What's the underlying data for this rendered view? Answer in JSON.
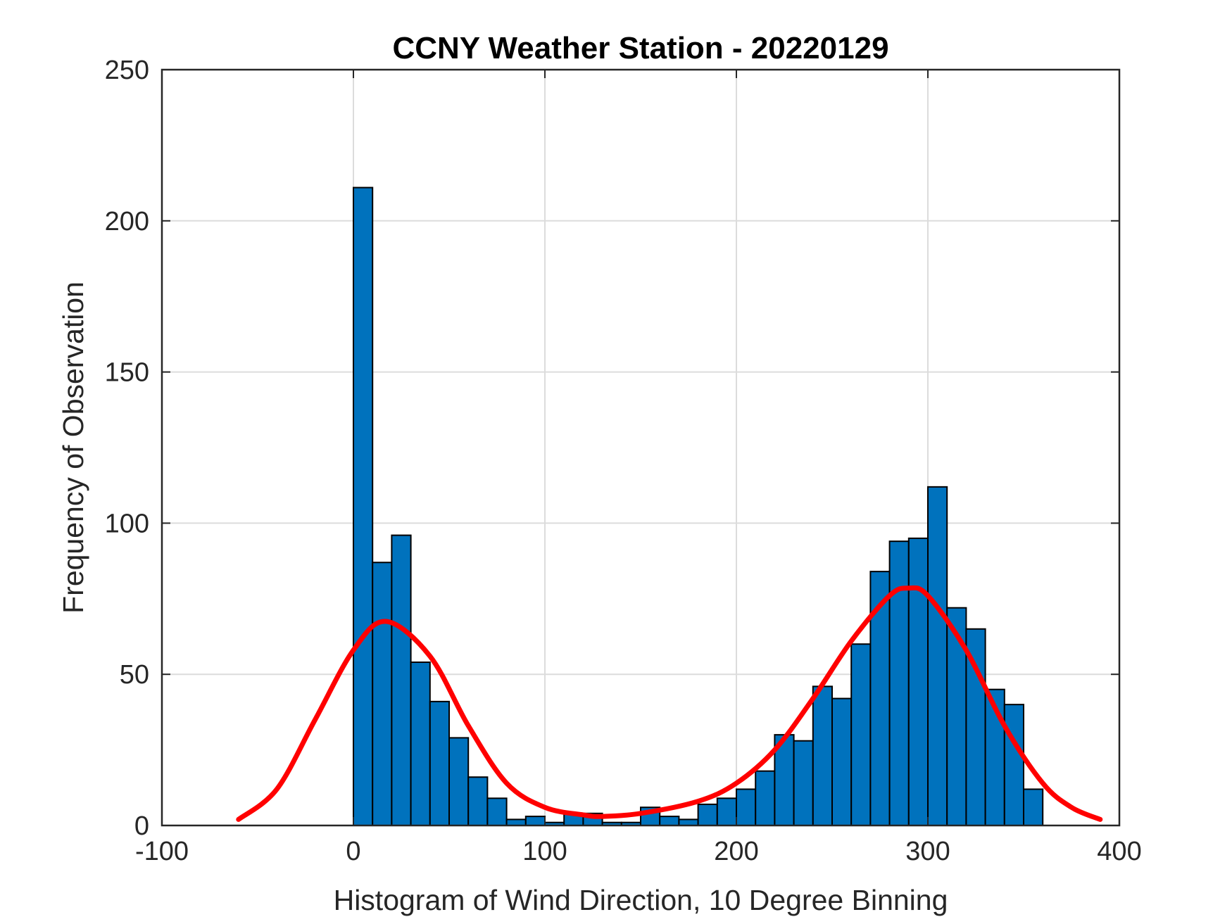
{
  "chart_data": {
    "type": "bar",
    "title": "CCNY Weather Station - 20220129",
    "xlabel": "Histogram of Wind Direction, 10 Degree Binning",
    "ylabel": "Frequency of Observation",
    "xlim": [
      -100,
      400
    ],
    "ylim": [
      0,
      250
    ],
    "xticks": [
      "-100",
      "0",
      "100",
      "200",
      "300",
      "400"
    ],
    "yticks": [
      "0",
      "50",
      "100",
      "150",
      "200",
      "250"
    ],
    "grid": true,
    "bin_width": 10,
    "bins": [
      {
        "start": 0,
        "count": 211
      },
      {
        "start": 10,
        "count": 87
      },
      {
        "start": 20,
        "count": 96
      },
      {
        "start": 30,
        "count": 54
      },
      {
        "start": 40,
        "count": 41
      },
      {
        "start": 50,
        "count": 29
      },
      {
        "start": 60,
        "count": 16
      },
      {
        "start": 70,
        "count": 9
      },
      {
        "start": 80,
        "count": 2
      },
      {
        "start": 90,
        "count": 3
      },
      {
        "start": 100,
        "count": 1
      },
      {
        "start": 110,
        "count": 4
      },
      {
        "start": 120,
        "count": 4
      },
      {
        "start": 130,
        "count": 1
      },
      {
        "start": 140,
        "count": 1
      },
      {
        "start": 150,
        "count": 6
      },
      {
        "start": 160,
        "count": 3
      },
      {
        "start": 170,
        "count": 2
      },
      {
        "start": 180,
        "count": 7
      },
      {
        "start": 190,
        "count": 9
      },
      {
        "start": 200,
        "count": 12
      },
      {
        "start": 210,
        "count": 18
      },
      {
        "start": 220,
        "count": 30
      },
      {
        "start": 230,
        "count": 28
      },
      {
        "start": 240,
        "count": 46
      },
      {
        "start": 250,
        "count": 42
      },
      {
        "start": 260,
        "count": 60
      },
      {
        "start": 270,
        "count": 84
      },
      {
        "start": 280,
        "count": 94
      },
      {
        "start": 290,
        "count": 95
      },
      {
        "start": 300,
        "count": 112
      },
      {
        "start": 310,
        "count": 72
      },
      {
        "start": 320,
        "count": 65
      },
      {
        "start": 330,
        "count": 45
      },
      {
        "start": 340,
        "count": 40
      },
      {
        "start": 350,
        "count": 12
      }
    ],
    "fit_curve": {
      "type": "line",
      "x": [
        -60,
        -40,
        -20,
        0,
        17,
        40,
        60,
        80,
        100,
        120,
        130,
        150,
        180,
        200,
        220,
        240,
        260,
        280,
        290,
        300,
        320,
        340,
        360,
        375,
        390
      ],
      "y": [
        2,
        12,
        35,
        58,
        67.5,
        56,
        33,
        14,
        6,
        3.5,
        3,
        4,
        8,
        14,
        25,
        42,
        61,
        76,
        78.5,
        76,
        58,
        33,
        14,
        6,
        2
      ]
    },
    "colors": {
      "bar_fill": "#0072bd",
      "bar_edge": "#000000",
      "fit_line": "#ff0000",
      "grid": "#dcdcdc",
      "axes": "#262626"
    }
  }
}
